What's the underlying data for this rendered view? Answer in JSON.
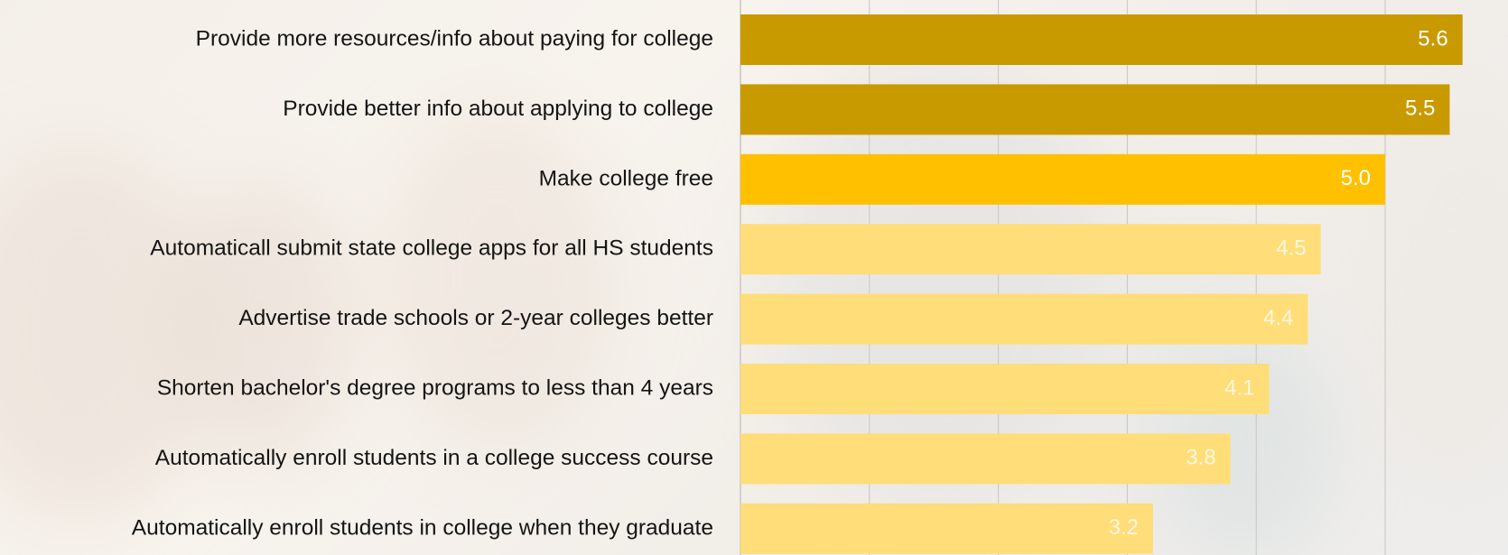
{
  "chart_data": {
    "type": "bar",
    "orientation": "horizontal",
    "categories": [
      "Provide more resources/info about paying for college",
      "Provide better info about applying to college",
      "Make college free",
      "Automaticall submit state college apps for all HS students",
      "Advertise trade schools or 2-year colleges better",
      "Shorten bachelor's degree programs to less than 4 years",
      "Automatically enroll students in a college success course",
      "Automatically enroll students in college when they graduate"
    ],
    "values": [
      5.6,
      5.5,
      5.0,
      4.5,
      4.4,
      4.1,
      3.8,
      3.2
    ],
    "value_labels": [
      "5.6",
      "5.5",
      "5.0",
      "4.5",
      "4.4",
      "4.1",
      "3.8",
      "3.2"
    ],
    "bar_colors": [
      "#c89a00",
      "#c89a00",
      "#ffc000",
      "#ffdd78",
      "#ffdd78",
      "#ffdd78",
      "#ffdd78",
      "#ffdd78"
    ],
    "label_colors": [
      "#ffffff",
      "#ffffff",
      "#ffffff",
      "#fff7e0",
      "#fff7e0",
      "#fff7e0",
      "#fff7e0",
      "#fff7e0"
    ],
    "xlim": [
      0,
      6
    ],
    "grid": true,
    "gridline_color": "#c9c6c0",
    "title": "",
    "xlabel": "",
    "ylabel": ""
  }
}
